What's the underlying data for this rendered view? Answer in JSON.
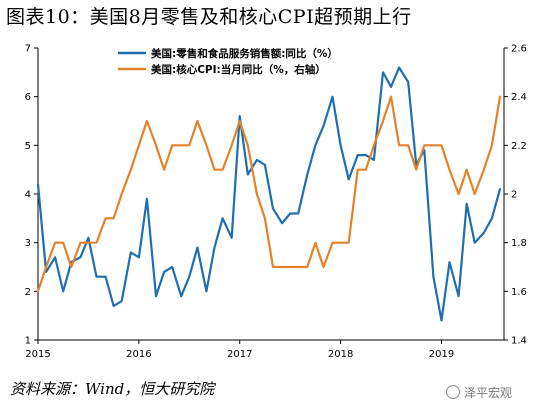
{
  "title": "图表10：美国8月零售及和核心CPI超预期上行",
  "source": "资料来源：Wind，恒大研究院",
  "watermark": "泽平宏观",
  "chart_data": {
    "type": "line",
    "x_ticks": [
      "2015",
      "2016",
      "2017",
      "2018",
      "2019"
    ],
    "x_range": [
      2015.0,
      2019.62
    ],
    "left_axis": {
      "ticks": [
        "1",
        "2",
        "3",
        "4",
        "5",
        "6",
        "7"
      ],
      "ylim": [
        1,
        7
      ]
    },
    "right_axis": {
      "ticks": [
        "1.4",
        "1.6",
        "1.8",
        "2",
        "2.2",
        "2.4",
        "2.6"
      ],
      "ylim": [
        1.4,
        2.6
      ]
    },
    "grid": false,
    "legend": "top-left",
    "series": [
      {
        "name": "美国:零售和食品服务销售额:同比（%）",
        "axis": "left",
        "color": "#1f6eb4",
        "x": [
          2015.0,
          2015.08,
          2015.17,
          2015.25,
          2015.33,
          2015.42,
          2015.5,
          2015.58,
          2015.67,
          2015.75,
          2015.83,
          2015.92,
          2016.0,
          2016.08,
          2016.17,
          2016.25,
          2016.33,
          2016.42,
          2016.5,
          2016.58,
          2016.67,
          2016.75,
          2016.83,
          2016.92,
          2017.0,
          2017.08,
          2017.17,
          2017.25,
          2017.33,
          2017.42,
          2017.5,
          2017.58,
          2017.67,
          2017.75,
          2017.83,
          2017.92,
          2018.0,
          2018.08,
          2018.17,
          2018.25,
          2018.33,
          2018.42,
          2018.5,
          2018.58,
          2018.67,
          2018.75,
          2018.83,
          2018.92,
          2019.0,
          2019.08,
          2019.17,
          2019.25,
          2019.33,
          2019.42,
          2019.5,
          2019.58
        ],
        "values": [
          4.2,
          2.4,
          2.7,
          2.0,
          2.6,
          2.7,
          3.1,
          2.3,
          2.3,
          1.7,
          1.8,
          2.8,
          2.7,
          3.9,
          1.9,
          2.4,
          2.5,
          1.9,
          2.3,
          2.9,
          2.0,
          2.9,
          3.5,
          3.1,
          5.6,
          4.4,
          4.7,
          4.6,
          3.7,
          3.4,
          3.6,
          3.6,
          4.4,
          5.0,
          5.4,
          6.0,
          5.0,
          4.3,
          4.8,
          4.8,
          4.7,
          6.5,
          6.2,
          6.6,
          6.3,
          4.6,
          4.9,
          2.3,
          1.4,
          2.6,
          1.9,
          3.8,
          3.0,
          3.2,
          3.5,
          4.1
        ]
      },
      {
        "name": "美国:核心CPI:当月同比（%，右轴）",
        "axis": "right",
        "color": "#e4822a",
        "x": [
          2015.0,
          2015.08,
          2015.17,
          2015.25,
          2015.33,
          2015.42,
          2015.5,
          2015.58,
          2015.67,
          2015.75,
          2015.83,
          2015.92,
          2016.0,
          2016.08,
          2016.17,
          2016.25,
          2016.33,
          2016.42,
          2016.5,
          2016.58,
          2016.67,
          2016.75,
          2016.83,
          2016.92,
          2017.0,
          2017.08,
          2017.17,
          2017.25,
          2017.33,
          2017.42,
          2017.5,
          2017.58,
          2017.67,
          2017.75,
          2017.83,
          2017.92,
          2018.0,
          2018.08,
          2018.17,
          2018.25,
          2018.33,
          2018.42,
          2018.5,
          2018.58,
          2018.67,
          2018.75,
          2018.83,
          2018.92,
          2019.0,
          2019.08,
          2019.17,
          2019.25,
          2019.33,
          2019.42,
          2019.5,
          2019.58
        ],
        "values": [
          1.6,
          1.7,
          1.8,
          1.8,
          1.7,
          1.8,
          1.8,
          1.8,
          1.9,
          1.9,
          2.0,
          2.1,
          2.2,
          2.3,
          2.2,
          2.1,
          2.2,
          2.2,
          2.2,
          2.3,
          2.2,
          2.1,
          2.1,
          2.2,
          2.3,
          2.2,
          2.0,
          1.9,
          1.7,
          1.7,
          1.7,
          1.7,
          1.7,
          1.8,
          1.7,
          1.8,
          1.8,
          1.8,
          2.1,
          2.1,
          2.2,
          2.3,
          2.4,
          2.2,
          2.2,
          2.1,
          2.2,
          2.2,
          2.2,
          2.1,
          2.0,
          2.1,
          2.0,
          2.1,
          2.2,
          2.4
        ]
      }
    ]
  }
}
